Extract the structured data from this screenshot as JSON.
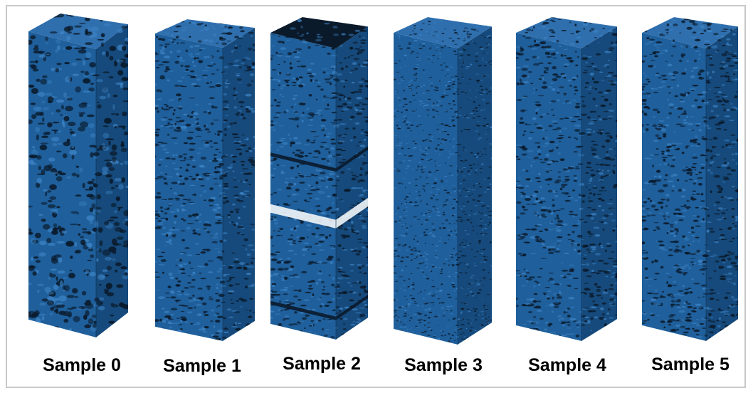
{
  "figure": {
    "samples": [
      {
        "label": "Sample 0",
        "gap": false,
        "porosity_style": "coarse"
      },
      {
        "label": "Sample 1",
        "gap": false,
        "porosity_style": "layered"
      },
      {
        "label": "Sample 2",
        "gap": true,
        "porosity_style": "stacked"
      },
      {
        "label": "Sample 3",
        "gap": false,
        "porosity_style": "fine"
      },
      {
        "label": "Sample 4",
        "gap": false,
        "porosity_style": "layered"
      },
      {
        "label": "Sample 5",
        "gap": false,
        "porosity_style": "layered"
      }
    ],
    "colors": {
      "face_front": "#1f5f9b",
      "face_side": "#164a7c",
      "face_top": "#2f6fae",
      "pore": "#0a1a2b",
      "highlight": "#3f86c8",
      "frame_border": "#c9c9c9"
    }
  }
}
